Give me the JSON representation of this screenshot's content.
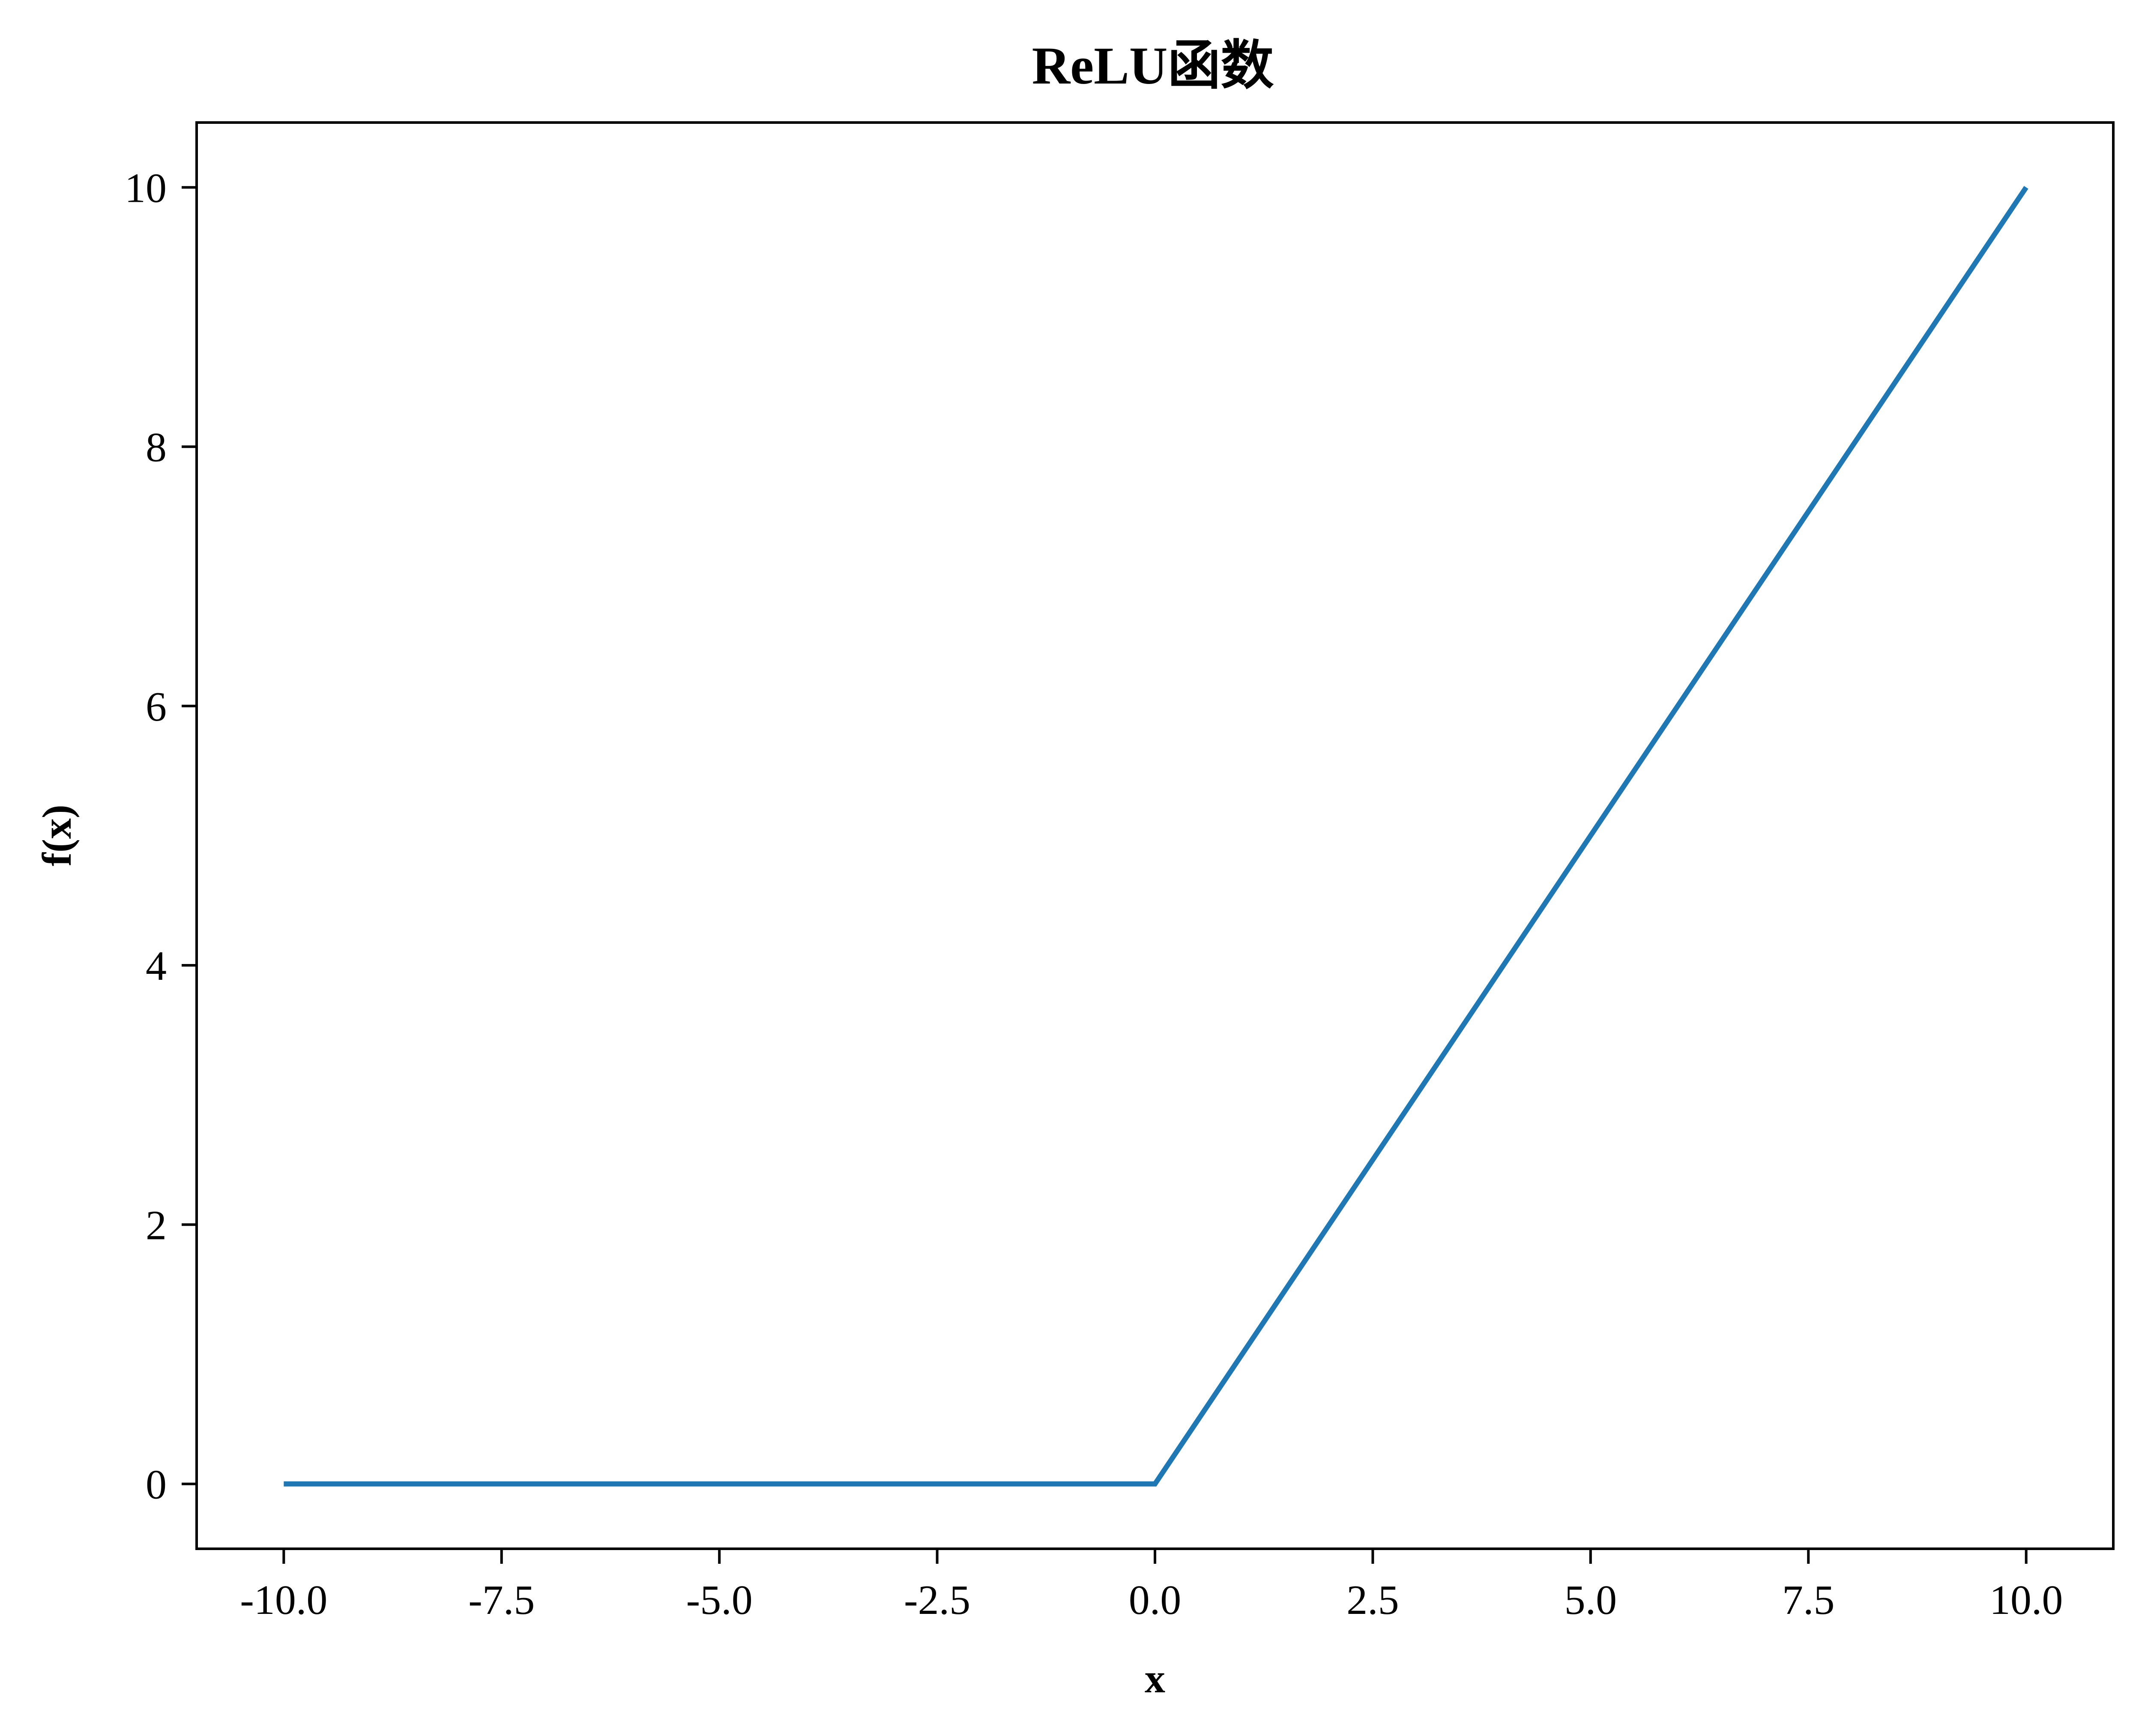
{
  "chart_data": {
    "type": "line",
    "title": "ReLU函数",
    "xlabel": "x",
    "ylabel": "f(x)",
    "xlim": [
      -11.0,
      11.0
    ],
    "ylim": [
      -0.5,
      10.5
    ],
    "x_ticks": [
      -10.0,
      -7.5,
      -5.0,
      -2.5,
      0.0,
      2.5,
      5.0,
      7.5,
      10.0
    ],
    "x_tick_labels": [
      "-10.0",
      "-7.5",
      "-5.0",
      "-2.5",
      "0.0",
      "2.5",
      "5.0",
      "7.5",
      "10.0"
    ],
    "y_ticks": [
      0,
      2,
      4,
      6,
      8,
      10
    ],
    "y_tick_labels": [
      "0",
      "2",
      "4",
      "6",
      "8",
      "10"
    ],
    "grid": false,
    "series": [
      {
        "color": "#1f77b4",
        "x": [
          -10.0,
          0.0,
          10.0
        ],
        "y": [
          0.0,
          0.0,
          10.0
        ]
      }
    ]
  }
}
